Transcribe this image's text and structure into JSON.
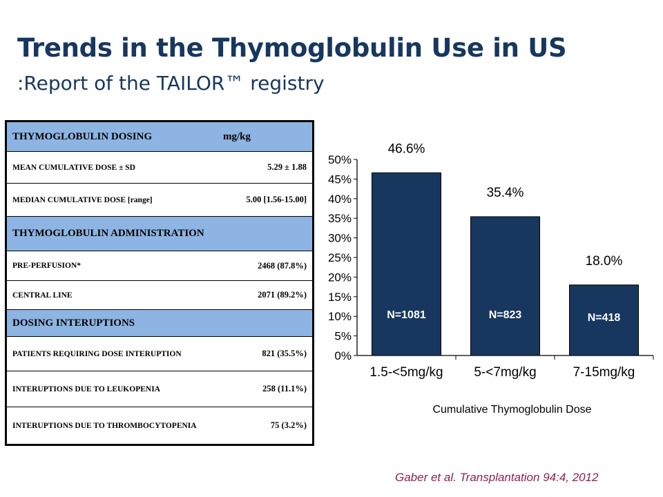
{
  "slide": {
    "title": "Trends in the Thymoglobulin Use in US",
    "subtitle": ":Report of the TAILOR™ registry",
    "citation": "Gaber et al. Transplantation 94:4, 2012"
  },
  "table": {
    "header1": "THYMOGLOBULIN DOSING",
    "header1_unit": "mg/kg",
    "rows1": [
      {
        "label": "MEAN CUMULATIVE DOSE ± SD",
        "value": "5.29 ± 1.88"
      },
      {
        "label": "MEDIAN CUMULATIVE DOSE [range]",
        "value": "5.00 [1.56-15.00]"
      }
    ],
    "header2": "THYMOGLOBULIN ADMINISTRATION",
    "rows2": [
      {
        "label": "PRE-PERFUSION*",
        "value": "2468 (87.8%)"
      },
      {
        "label": "CENTRAL LINE",
        "value": "2071 (89.2%)"
      }
    ],
    "header3": "DOSING INTERUPTIONS",
    "rows3": [
      {
        "label": "PATIENTS REQUIRING DOSE INTERUPTION",
        "value": "821 (35.5%)"
      },
      {
        "label": "INTERUPTIONS DUE TO LEUKOPENIA",
        "value": "258 (11.1%)"
      },
      {
        "label": "INTERUPTIONS DUE TO THROMBOCYTOPENIA",
        "value": "75 (3.2%)"
      }
    ]
  },
  "chart_data": {
    "type": "bar",
    "categories": [
      "1.5-<5mg/kg",
      "5-<7mg/kg",
      "7-15mg/kg"
    ],
    "values": [
      46.6,
      35.4,
      18.0
    ],
    "value_labels": [
      "46.6%",
      "35.4%",
      "18.0%"
    ],
    "bar_labels": [
      "N=1081",
      "N=823",
      "N=418"
    ],
    "xlabel": "Cumulative Thymoglobulin Dose",
    "ylabel": "",
    "ylim": [
      0,
      50
    ],
    "yticks": [
      "0%",
      "5%",
      "10%",
      "15%",
      "20%",
      "25%",
      "30%",
      "35%",
      "40%",
      "45%",
      "50%"
    ],
    "grid": false,
    "bar_color": "#17375E",
    "bar_label_color": "#ffffff"
  }
}
